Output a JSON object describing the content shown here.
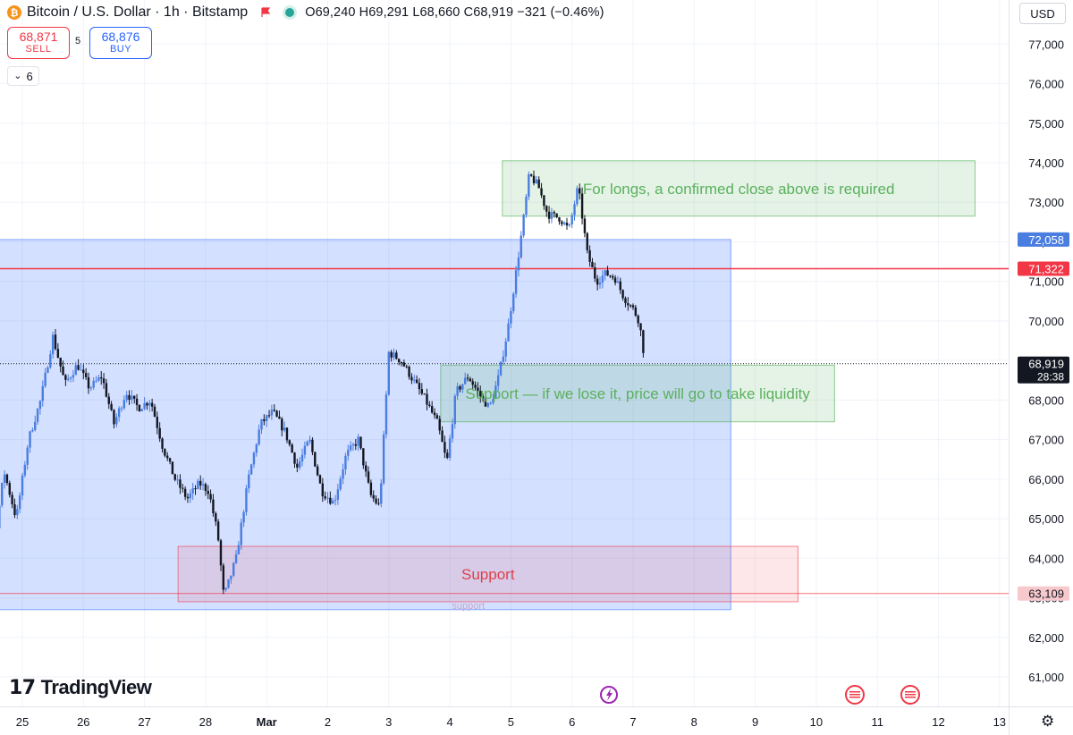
{
  "header": {
    "symbol_title": "Bitcoin / U.S. Dollar · 1h · Bitstamp",
    "logo_glyph": "₿",
    "ohlc": {
      "o_label": "O",
      "o": "69,240",
      "h_label": "H",
      "h": "69,291",
      "l_label": "L",
      "l": "68,660",
      "c_label": "C",
      "c": "68,919",
      "change": "−321 (−0.46%)"
    }
  },
  "trade": {
    "sell_price": "68,871",
    "sell_label": "SELL",
    "spread": "5",
    "buy_price": "68,876",
    "buy_label": "BUY"
  },
  "indicators_toggle": {
    "chevron": "⌄",
    "count": "6"
  },
  "currency": "USD",
  "brand": {
    "name": "TradingView",
    "mark": "17"
  },
  "colors": {
    "up": "#4a7de0",
    "down": "#131722",
    "red": "#f23645",
    "blue_zone": "#2962ff",
    "green": "#4caf50"
  },
  "chart_data": {
    "type": "candlestick",
    "symbol": "BTCUSD",
    "interval": "1h",
    "ylim": [
      60000,
      77800
    ],
    "y_ticks": [
      61000,
      62000,
      63000,
      64000,
      65000,
      66000,
      67000,
      68000,
      69000,
      70000,
      71000,
      72000,
      73000,
      74000,
      75000,
      76000,
      77000
    ],
    "x_ticks": [
      {
        "day": 25,
        "label": "25"
      },
      {
        "day": 26,
        "label": "26"
      },
      {
        "day": 27,
        "label": "27"
      },
      {
        "day": 28,
        "label": "28"
      },
      {
        "day": 29,
        "label": "Mar"
      },
      {
        "day": 30,
        "label": "2"
      },
      {
        "day": 31,
        "label": "3"
      },
      {
        "day": 32,
        "label": "4"
      },
      {
        "day": 33,
        "label": "5"
      },
      {
        "day": 34,
        "label": "6"
      },
      {
        "day": 35,
        "label": "7"
      },
      {
        "day": 36,
        "label": "8"
      },
      {
        "day": 37,
        "label": "9"
      },
      {
        "day": 38,
        "label": "10"
      },
      {
        "day": 39,
        "label": "11"
      },
      {
        "day": 40,
        "label": "12"
      },
      {
        "day": 41,
        "label": "13"
      }
    ],
    "price_path": [
      [
        24.0,
        63000
      ],
      [
        24.3,
        64200
      ],
      [
        24.5,
        63900
      ],
      [
        24.7,
        66200
      ],
      [
        24.9,
        65000
      ],
      [
        25.1,
        67000
      ],
      [
        25.3,
        68000
      ],
      [
        25.5,
        69600
      ],
      [
        25.7,
        68400
      ],
      [
        25.9,
        68900
      ],
      [
        26.1,
        68300
      ],
      [
        26.3,
        68600
      ],
      [
        26.5,
        67400
      ],
      [
        26.7,
        68200
      ],
      [
        26.9,
        67800
      ],
      [
        27.1,
        68000
      ],
      [
        27.3,
        66800
      ],
      [
        27.5,
        66000
      ],
      [
        27.7,
        65500
      ],
      [
        27.9,
        65900
      ],
      [
        28.05,
        65700
      ],
      [
        28.2,
        64600
      ],
      [
        28.3,
        63000
      ],
      [
        28.5,
        64000
      ],
      [
        28.7,
        66000
      ],
      [
        28.9,
        67400
      ],
      [
        29.1,
        67700
      ],
      [
        29.3,
        67200
      ],
      [
        29.5,
        66300
      ],
      [
        29.7,
        67000
      ],
      [
        29.9,
        65700
      ],
      [
        30.1,
        65400
      ],
      [
        30.3,
        66600
      ],
      [
        30.5,
        67000
      ],
      [
        30.7,
        65600
      ],
      [
        30.85,
        65300
      ],
      [
        31.0,
        69200
      ],
      [
        31.2,
        69000
      ],
      [
        31.4,
        68500
      ],
      [
        31.6,
        68000
      ],
      [
        31.8,
        67400
      ],
      [
        31.95,
        66400
      ],
      [
        32.1,
        68200
      ],
      [
        32.3,
        68600
      ],
      [
        32.5,
        68100
      ],
      [
        32.65,
        67800
      ],
      [
        32.8,
        68600
      ],
      [
        32.95,
        69800
      ],
      [
        33.1,
        71400
      ],
      [
        33.2,
        72500
      ],
      [
        33.3,
        73700
      ],
      [
        33.45,
        73400
      ],
      [
        33.6,
        72700
      ],
      [
        33.8,
        72600
      ],
      [
        33.95,
        72300
      ],
      [
        34.1,
        73400
      ],
      [
        34.25,
        71700
      ],
      [
        34.4,
        71000
      ],
      [
        34.55,
        71200
      ],
      [
        34.7,
        71100
      ],
      [
        34.85,
        70600
      ],
      [
        35.0,
        70300
      ],
      [
        35.1,
        70000
      ],
      [
        35.2,
        68919
      ]
    ],
    "current_price": 68919,
    "current_price_label": "68,919",
    "countdown": "28:38",
    "horizontal_lines": [
      {
        "price": 71322,
        "label": "71,322",
        "color": "#f23645"
      },
      {
        "price": 63109,
        "label": "63,109",
        "color": "#f23645"
      }
    ],
    "range_box": {
      "top": 72058,
      "bottom": 62700,
      "x_start": 24.0,
      "x_end": 36.6,
      "label": "72,058"
    },
    "zones": [
      {
        "top": 74050,
        "bottom": 72650,
        "x_start": 32.86,
        "x_end": 40.6,
        "text": "For longs, a confirmed close above is required",
        "color": "#4caf50"
      },
      {
        "top": 68880,
        "bottom": 67450,
        "x_start": 31.85,
        "x_end": 38.3,
        "text": "Support — if we lose it, price will go to take liquidity",
        "color": "#4caf50"
      },
      {
        "top": 64300,
        "bottom": 62900,
        "x_start": 27.55,
        "x_end": 37.7,
        "text": "Support",
        "color": "#f23645",
        "sub_text": "support"
      }
    ]
  }
}
